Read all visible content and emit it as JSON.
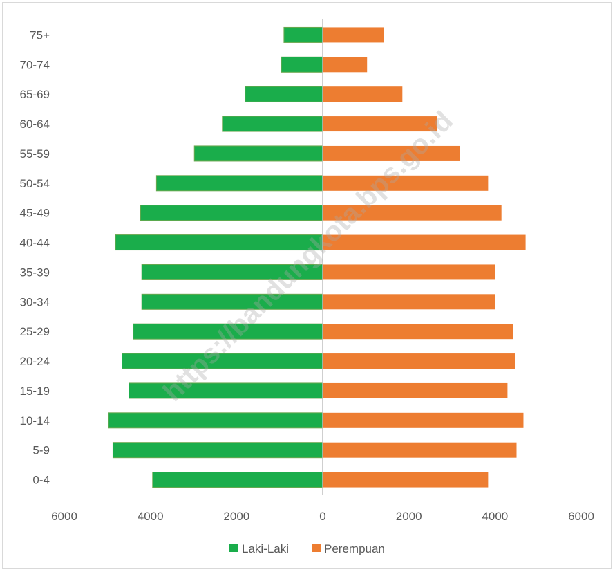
{
  "chart_data": {
    "type": "bar",
    "orientation": "horizontal",
    "categories": [
      "0-4",
      "5-9",
      "10-14",
      "15-19",
      "20-24",
      "25-29",
      "30-34",
      "35-39",
      "40-44",
      "45-49",
      "50-54",
      "55-59",
      "60-64",
      "65-69",
      "70-74",
      "75+"
    ],
    "series": [
      {
        "name": "Laki-Laki",
        "color": "#1aad4b",
        "values": [
          3950,
          4870,
          4970,
          4500,
          4660,
          4400,
          4200,
          4200,
          4810,
          4230,
          3860,
          2980,
          2330,
          1800,
          960,
          900
        ]
      },
      {
        "name": "Perempuan",
        "color": "#ed7d31",
        "values": [
          3840,
          4500,
          4660,
          4290,
          4460,
          4420,
          4010,
          4010,
          4710,
          4150,
          3840,
          3180,
          2660,
          1850,
          1030,
          1420
        ]
      }
    ],
    "xaxis_ticks": [
      "6000",
      "4000",
      "2000",
      "0",
      "2000",
      "4000",
      "6000"
    ],
    "xlim": [
      -6000,
      6000
    ],
    "grid": false,
    "legend_position": "bottom"
  },
  "watermark": "https://bandungkota.bps.go.id"
}
